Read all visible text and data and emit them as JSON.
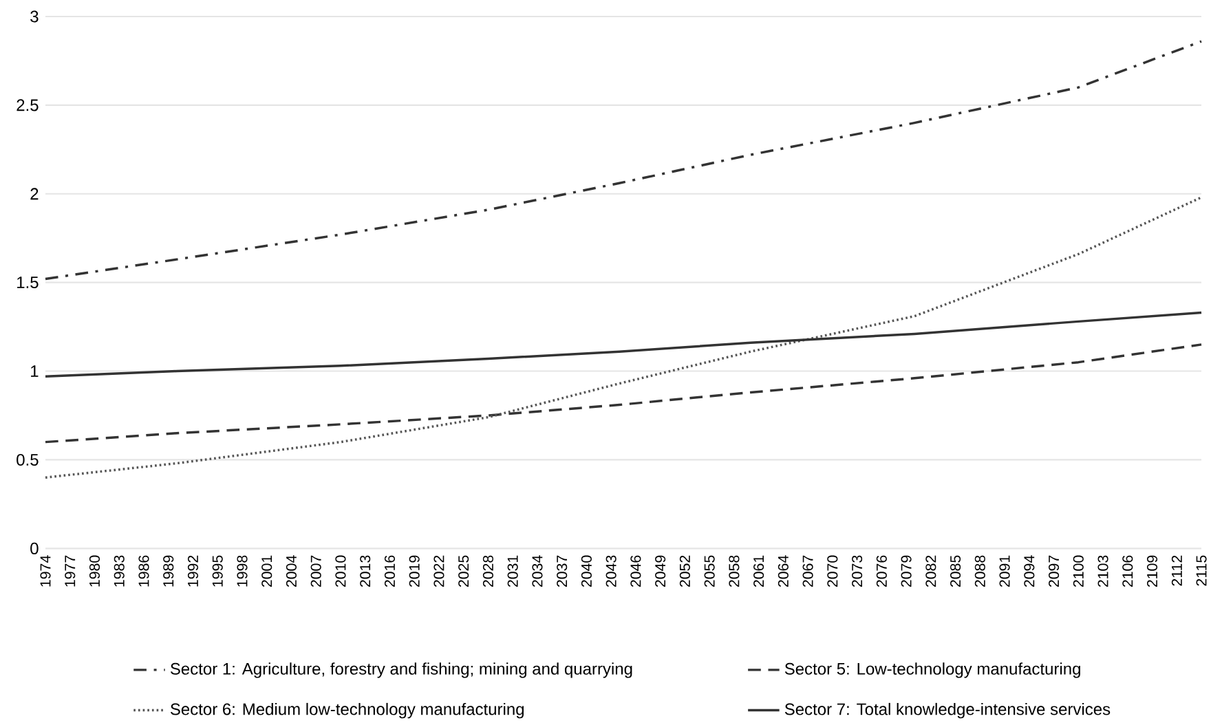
{
  "chart_data": {
    "type": "line",
    "x": [
      1974,
      1990,
      2010,
      2028,
      2044,
      2060,
      2080,
      2100,
      2115
    ],
    "series": [
      {
        "name": "Sector 1: Agriculture, forestry and fishing; mining and quarrying",
        "color": "#333333",
        "line_style": "dashdot",
        "values": [
          1.52,
          1.63,
          1.77,
          1.91,
          2.06,
          2.22,
          2.4,
          2.6,
          2.86
        ]
      },
      {
        "name": "Sector 5: Low-technology manufacturing",
        "color": "#333333",
        "line_style": "dashed",
        "values": [
          0.6,
          0.65,
          0.7,
          0.75,
          0.81,
          0.88,
          0.96,
          1.05,
          1.15
        ]
      },
      {
        "name": "Sector 6: Medium low-technology manufacturing",
        "color": "#555555",
        "line_style": "dotted",
        "values": [
          0.4,
          0.48,
          0.6,
          0.74,
          0.93,
          1.11,
          1.31,
          1.66,
          1.98
        ]
      },
      {
        "name": "Sector 7: Total knowledge-intensive services",
        "color": "#333333",
        "line_style": "solid",
        "values": [
          0.97,
          1.0,
          1.03,
          1.07,
          1.11,
          1.16,
          1.21,
          1.28,
          1.33
        ]
      }
    ],
    "xlim": [
      1974,
      2115
    ],
    "xticks": [
      1974,
      1977,
      1980,
      1983,
      1986,
      1989,
      1992,
      1995,
      1998,
      2001,
      2004,
      2007,
      2010,
      2013,
      2016,
      2019,
      2022,
      2025,
      2028,
      2031,
      2034,
      2037,
      2040,
      2043,
      2046,
      2049,
      2052,
      2055,
      2058,
      2061,
      2064,
      2067,
      2070,
      2073,
      2076,
      2079,
      2082,
      2085,
      2088,
      2091,
      2094,
      2097,
      2100,
      2103,
      2106,
      2109,
      2112,
      2115
    ],
    "ylim": [
      0,
      3
    ],
    "yticks": [
      0,
      0.5,
      1,
      1.5,
      2,
      2.5,
      3
    ],
    "grid": "y",
    "legend": "bottom",
    "marker": "none"
  }
}
